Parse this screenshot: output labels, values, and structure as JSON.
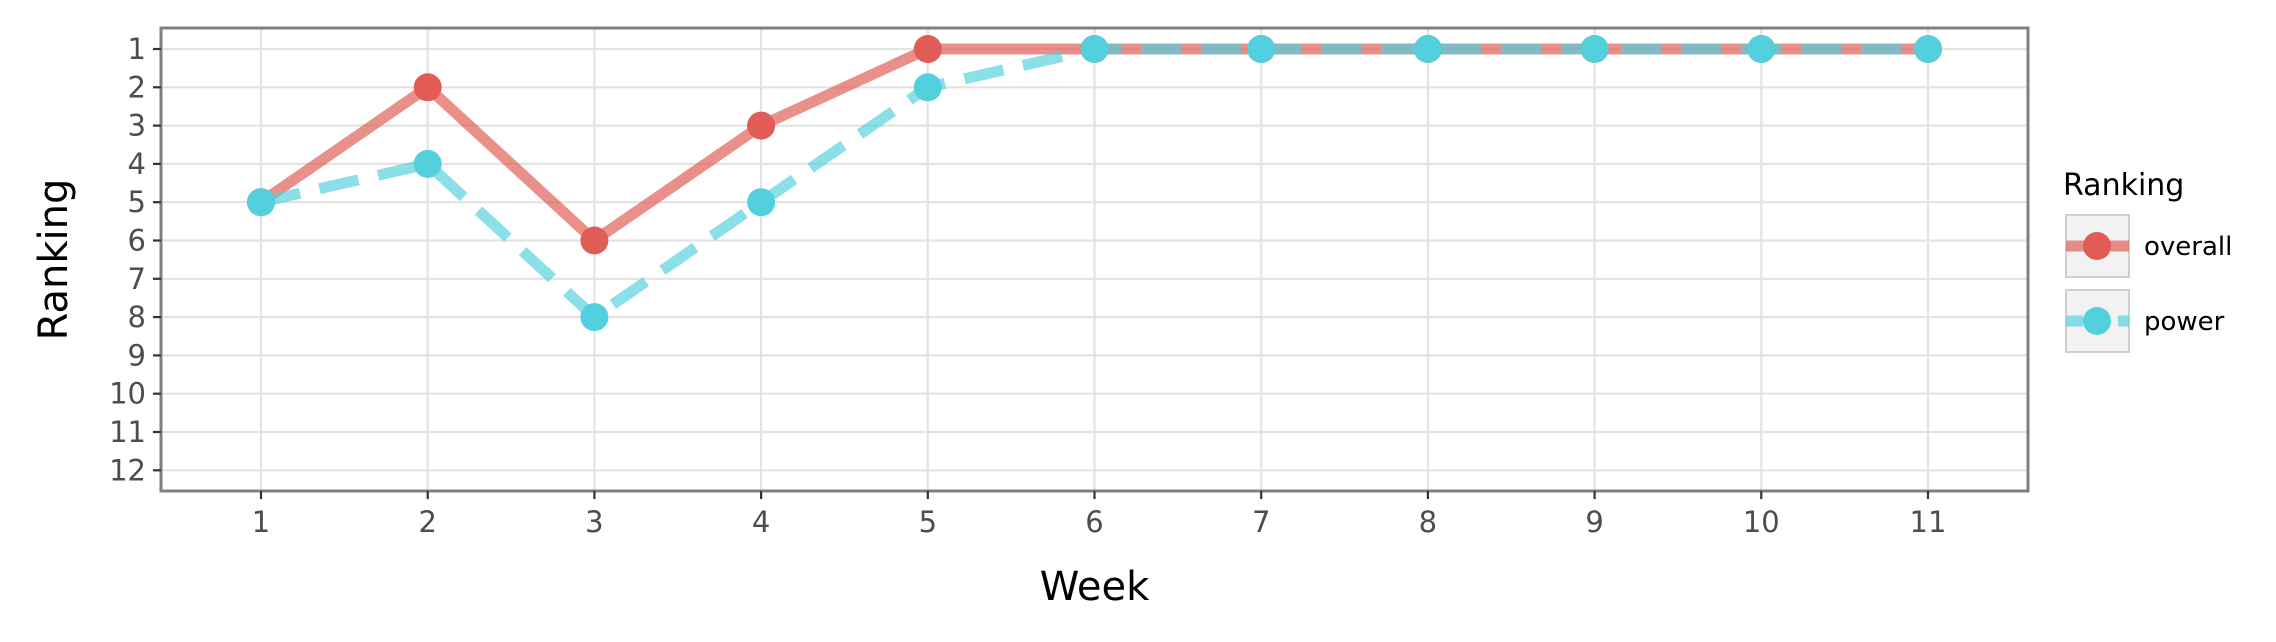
{
  "chart_data": {
    "type": "line",
    "x": [
      1,
      2,
      3,
      4,
      5,
      6,
      7,
      8,
      9,
      10,
      11
    ],
    "xlabel": "Week",
    "ylabel": "Ranking",
    "y_reversed": true,
    "y_ticks": [
      1,
      2,
      3,
      4,
      5,
      6,
      7,
      8,
      9,
      10,
      11,
      12
    ],
    "x_ticks": [
      1,
      2,
      3,
      4,
      5,
      6,
      7,
      8,
      9,
      10,
      11
    ],
    "xlim": [
      0.4,
      11.6
    ],
    "ylim": [
      1,
      12
    ],
    "grid": true,
    "legend": {
      "title": "Ranking",
      "placement": "right"
    },
    "series": [
      {
        "name": "overall",
        "values": [
          5,
          2,
          6,
          3,
          1,
          1,
          1,
          1,
          1,
          1,
          1
        ],
        "color": "#e05c54",
        "line_style": "solid"
      },
      {
        "name": "power",
        "values": [
          5,
          4,
          8,
          5,
          2,
          1,
          1,
          1,
          1,
          1,
          1
        ],
        "color": "#52d0de",
        "line_style": "dashed"
      }
    ]
  }
}
